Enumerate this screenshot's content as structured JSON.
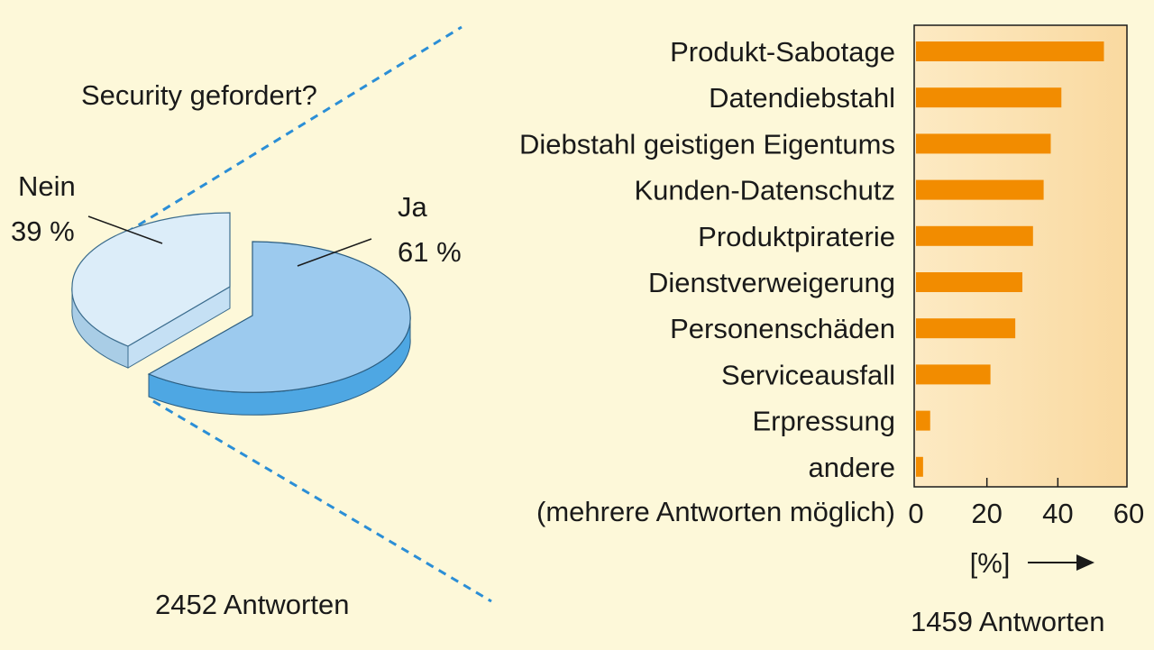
{
  "chart_data": [
    {
      "type": "pie",
      "title": "Security gefordert?",
      "slices": [
        {
          "label": "Ja",
          "value": 61,
          "value_label": "61 %",
          "color": "#9ccaee"
        },
        {
          "label": "Nein",
          "value": 39,
          "value_label": "39 %",
          "color": "#dcedf9"
        }
      ],
      "footer": "2452 Antworten",
      "style": "3d-exploded"
    },
    {
      "type": "bar",
      "orientation": "horizontal",
      "categories": [
        "Produkt-Sabotage",
        "Datendiebstahl",
        "Diebstahl geistigen Eigentums",
        "Kunden-Datenschutz",
        "Produktpiraterie",
        "Dienstverweigerung",
        "Personenschäden",
        "Serviceausfall",
        "Erpressung",
        "andere"
      ],
      "values": [
        53,
        41,
        38,
        36,
        33,
        30,
        28,
        21,
        4,
        2
      ],
      "note": "(mehrere Antworten möglich)",
      "xlabel": "[%]",
      "xlim": [
        0,
        60
      ],
      "xticks": [
        "0",
        "20",
        "40",
        "60"
      ],
      "footer": "1459 Antworten",
      "bar_color": "#f28c00",
      "panel_color": "#fbe0ad"
    }
  ],
  "colors": {
    "background": "#fdf8d9",
    "connector": "#2b8ed6"
  }
}
